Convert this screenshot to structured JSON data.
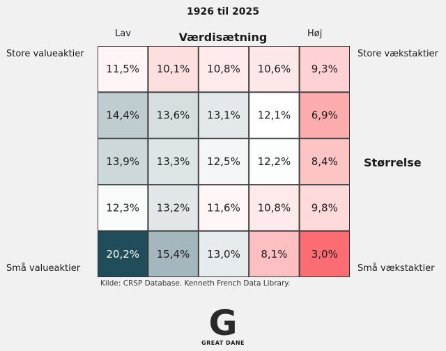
{
  "chart_data": {
    "type": "heatmap",
    "title": "1926 til 2025",
    "x_axis_title": "Værdisætning",
    "x_end_labels": [
      "Lav",
      "Høj"
    ],
    "y_axis_title": "Størrelse",
    "corner_labels": {
      "top_left": "Store valueaktier",
      "top_right": "Store vækstaktier",
      "bottom_left": "Små valueaktier",
      "bottom_right": "Små vækstaktier"
    },
    "rows": [
      {
        "values": [
          11.5,
          10.1,
          10.8,
          10.6,
          9.3
        ],
        "labels": [
          "11,5%",
          "10,1%",
          "10,8%",
          "10,6%",
          "9,3%"
        ]
      },
      {
        "values": [
          14.4,
          13.6,
          13.1,
          12.1,
          6.9
        ],
        "labels": [
          "14,4%",
          "13,6%",
          "13,1%",
          "12,1%",
          "6,9%"
        ]
      },
      {
        "values": [
          13.9,
          13.3,
          12.5,
          12.2,
          8.4
        ],
        "labels": [
          "13,9%",
          "13,3%",
          "12,5%",
          "12,2%",
          "8,4%"
        ]
      },
      {
        "values": [
          12.3,
          13.2,
          11.6,
          10.8,
          9.8
        ],
        "labels": [
          "12,3%",
          "13,2%",
          "11,6%",
          "10,8%",
          "9,8%"
        ]
      },
      {
        "values": [
          20.2,
          15.4,
          13.0,
          8.1,
          3.0
        ],
        "labels": [
          "20,2%",
          "15,4%",
          "13,0%",
          "8,1%",
          "3,0%"
        ]
      }
    ],
    "colors": {
      "high": "#1f4e5a",
      "mid": "#ffffff",
      "low": "#fb6d72",
      "mid_value": 12.1
    }
  },
  "source": "Kilde: CRSP Database. Kenneth French Data Library.",
  "brand": {
    "name": "GREAT DANE",
    "logo_letter": "G"
  }
}
